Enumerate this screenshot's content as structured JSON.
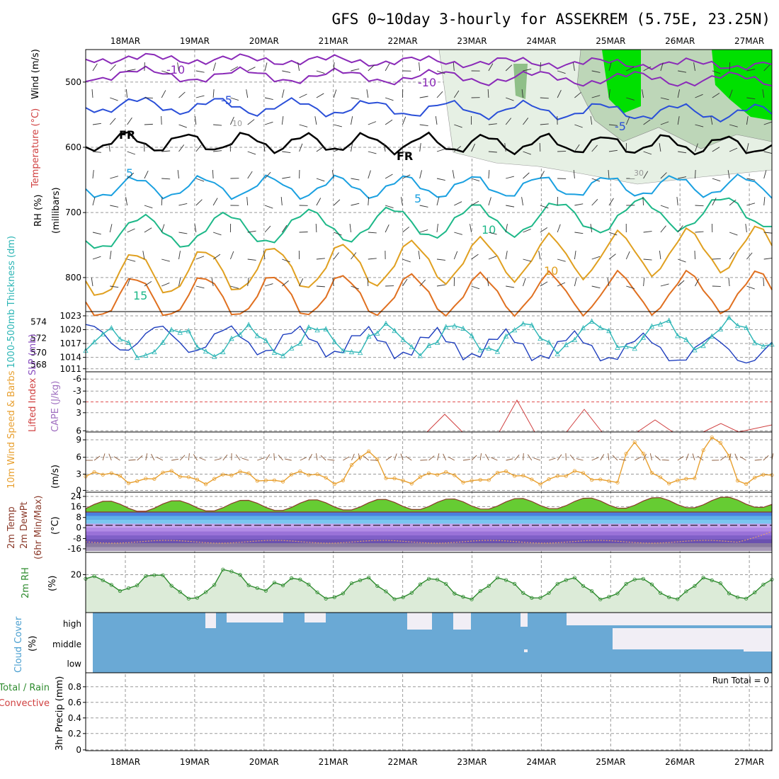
{
  "title": "GFS 0~10day 3-hourly for ASSEKREM (5.75E, 23.25N)",
  "dates": [
    "18MAR",
    "19MAR",
    "20MAR",
    "21MAR",
    "22MAR",
    "23MAR",
    "24MAR",
    "25MAR",
    "26MAR",
    "27MAR"
  ],
  "panels": {
    "upper_air": {
      "labels": [
        "RH (%)",
        "Temperature (°C)",
        "Wind (m/s)",
        "(millibars)"
      ],
      "y_ticks": [
        "500",
        "600",
        "700",
        "800"
      ],
      "contour_labels": [
        "-10",
        "-10",
        "-5",
        "-5",
        "FR",
        "FR",
        "5",
        "5",
        "10",
        "10",
        "15",
        "10",
        "30"
      ]
    },
    "slp": {
      "labels": [
        "1000-500mb Thickness (dm)",
        "SLP (mb)"
      ],
      "thickness_ticks": [
        "574",
        "572",
        "570",
        "568"
      ],
      "slp_ticks": [
        "1023",
        "1020",
        "1017",
        "1014",
        "1011"
      ]
    },
    "stability": {
      "labels": [
        "Lifted Index",
        "CAPE (J/kg)"
      ],
      "ticks": [
        "-6",
        "-3",
        "0",
        "3",
        "6"
      ]
    },
    "wind10m": {
      "labels": [
        "10m Wind Speed & Barbs",
        "(m/s)"
      ],
      "ticks": [
        "9",
        "6",
        "3",
        "0"
      ]
    },
    "temp2m": {
      "labels": [
        "2m Temp",
        "2m DewPt",
        "(6hr Min/Max)",
        "(°C)"
      ],
      "ticks": [
        "24",
        "16",
        "8",
        "0",
        "-8",
        "-16"
      ]
    },
    "rh2m": {
      "labels": [
        "2m RH",
        "(%)"
      ],
      "ticks": [
        "20"
      ]
    },
    "cloud": {
      "labels": [
        "Cloud Cover",
        "(%)"
      ],
      "ticks": [
        "high",
        "middle",
        "low"
      ]
    },
    "precip": {
      "labels": [
        "Total / Rain",
        "Convective",
        "3hr Precip (mm)"
      ],
      "ticks": [
        "0.8",
        "0.6",
        "0.4",
        "0.2",
        "0"
      ],
      "run_total": "Run Total = 0"
    }
  },
  "colors": {
    "slp_line": "#1f3fbf",
    "thickness_line": "#2bb5b5",
    "wind_speed": "#e8a030",
    "temp_line": "#8b3a2a",
    "dew_line": "#8b3a2a",
    "rh_line": "#2e8b2e",
    "rh_fill": "#dcebd8",
    "cloud_fill": "#6aa9d5",
    "lifted_index": "#d04040"
  },
  "chart_data": [
    {
      "type": "line",
      "title": "SLP (mb)",
      "xlabel": "",
      "ylabel": "SLP (mb)",
      "x": [
        "18MAR",
        "19MAR",
        "20MAR",
        "21MAR",
        "22MAR",
        "23MAR",
        "24MAR",
        "25MAR",
        "26MAR",
        "27MAR"
      ],
      "series": [
        {
          "name": "SLP (mb)",
          "values": [
            1022,
            1020,
            1019,
            1018,
            1018,
            1017,
            1017,
            1016,
            1016,
            1014
          ]
        },
        {
          "name": "1000-500mb Thickness (dm)",
          "values": [
            568.5,
            569,
            570,
            571,
            570,
            569,
            570,
            572,
            572,
            573
          ]
        }
      ],
      "ylim": [
        1011,
        1023
      ]
    },
    {
      "type": "line",
      "title": "10m Wind Speed & Barbs",
      "xlabel": "",
      "ylabel": "(m/s)",
      "x": [
        "18MAR",
        "19MAR",
        "20MAR",
        "21MAR",
        "22MAR",
        "23MAR",
        "24MAR",
        "25MAR",
        "26MAR",
        "27MAR"
      ],
      "series": [
        {
          "name": "10m Wind Speed",
          "values": [
            2,
            3,
            2.5,
            2,
            6.5,
            2.5,
            3,
            3,
            8,
            3
          ]
        }
      ],
      "ylim": [
        0,
        10
      ]
    },
    {
      "type": "area",
      "title": "2m Temp",
      "xlabel": "",
      "ylabel": "(°C)",
      "x": [
        "18MAR",
        "19MAR",
        "20MAR",
        "21MAR",
        "22MAR",
        "23MAR",
        "24MAR",
        "25MAR",
        "26MAR",
        "27MAR"
      ],
      "series": [
        {
          "name": "2m Temp",
          "values": [
            14,
            12,
            13,
            14,
            15,
            15,
            16,
            17,
            18,
            19
          ]
        },
        {
          "name": "2m DewPt",
          "values": [
            -12,
            -11,
            -11,
            -11,
            -10,
            -10,
            -10,
            -9,
            -9,
            -6
          ]
        }
      ],
      "ylim": [
        -20,
        26
      ]
    },
    {
      "type": "area",
      "title": "2m RH",
      "xlabel": "",
      "ylabel": "(%)",
      "x": [
        "18MAR",
        "19MAR",
        "20MAR",
        "21MAR",
        "22MAR",
        "23MAR",
        "24MAR",
        "25MAR",
        "26MAR",
        "27MAR"
      ],
      "series": [
        {
          "name": "2m RH",
          "values": [
            29,
            27,
            20,
            19,
            15,
            19,
            22,
            15,
            14,
            22
          ]
        }
      ],
      "ylim": [
        0,
        35
      ]
    },
    {
      "type": "line",
      "title": "3hr Precip (mm)",
      "xlabel": "",
      "ylabel": "3hr Precip (mm)",
      "x": [
        "18MAR",
        "19MAR",
        "20MAR",
        "21MAR",
        "22MAR",
        "23MAR",
        "24MAR",
        "25MAR",
        "26MAR",
        "27MAR"
      ],
      "series": [
        {
          "name": "3hr Precip",
          "values": [
            0,
            0,
            0,
            0,
            0,
            0,
            0,
            0,
            0,
            0
          ]
        }
      ],
      "ylim": [
        0,
        1
      ]
    }
  ]
}
